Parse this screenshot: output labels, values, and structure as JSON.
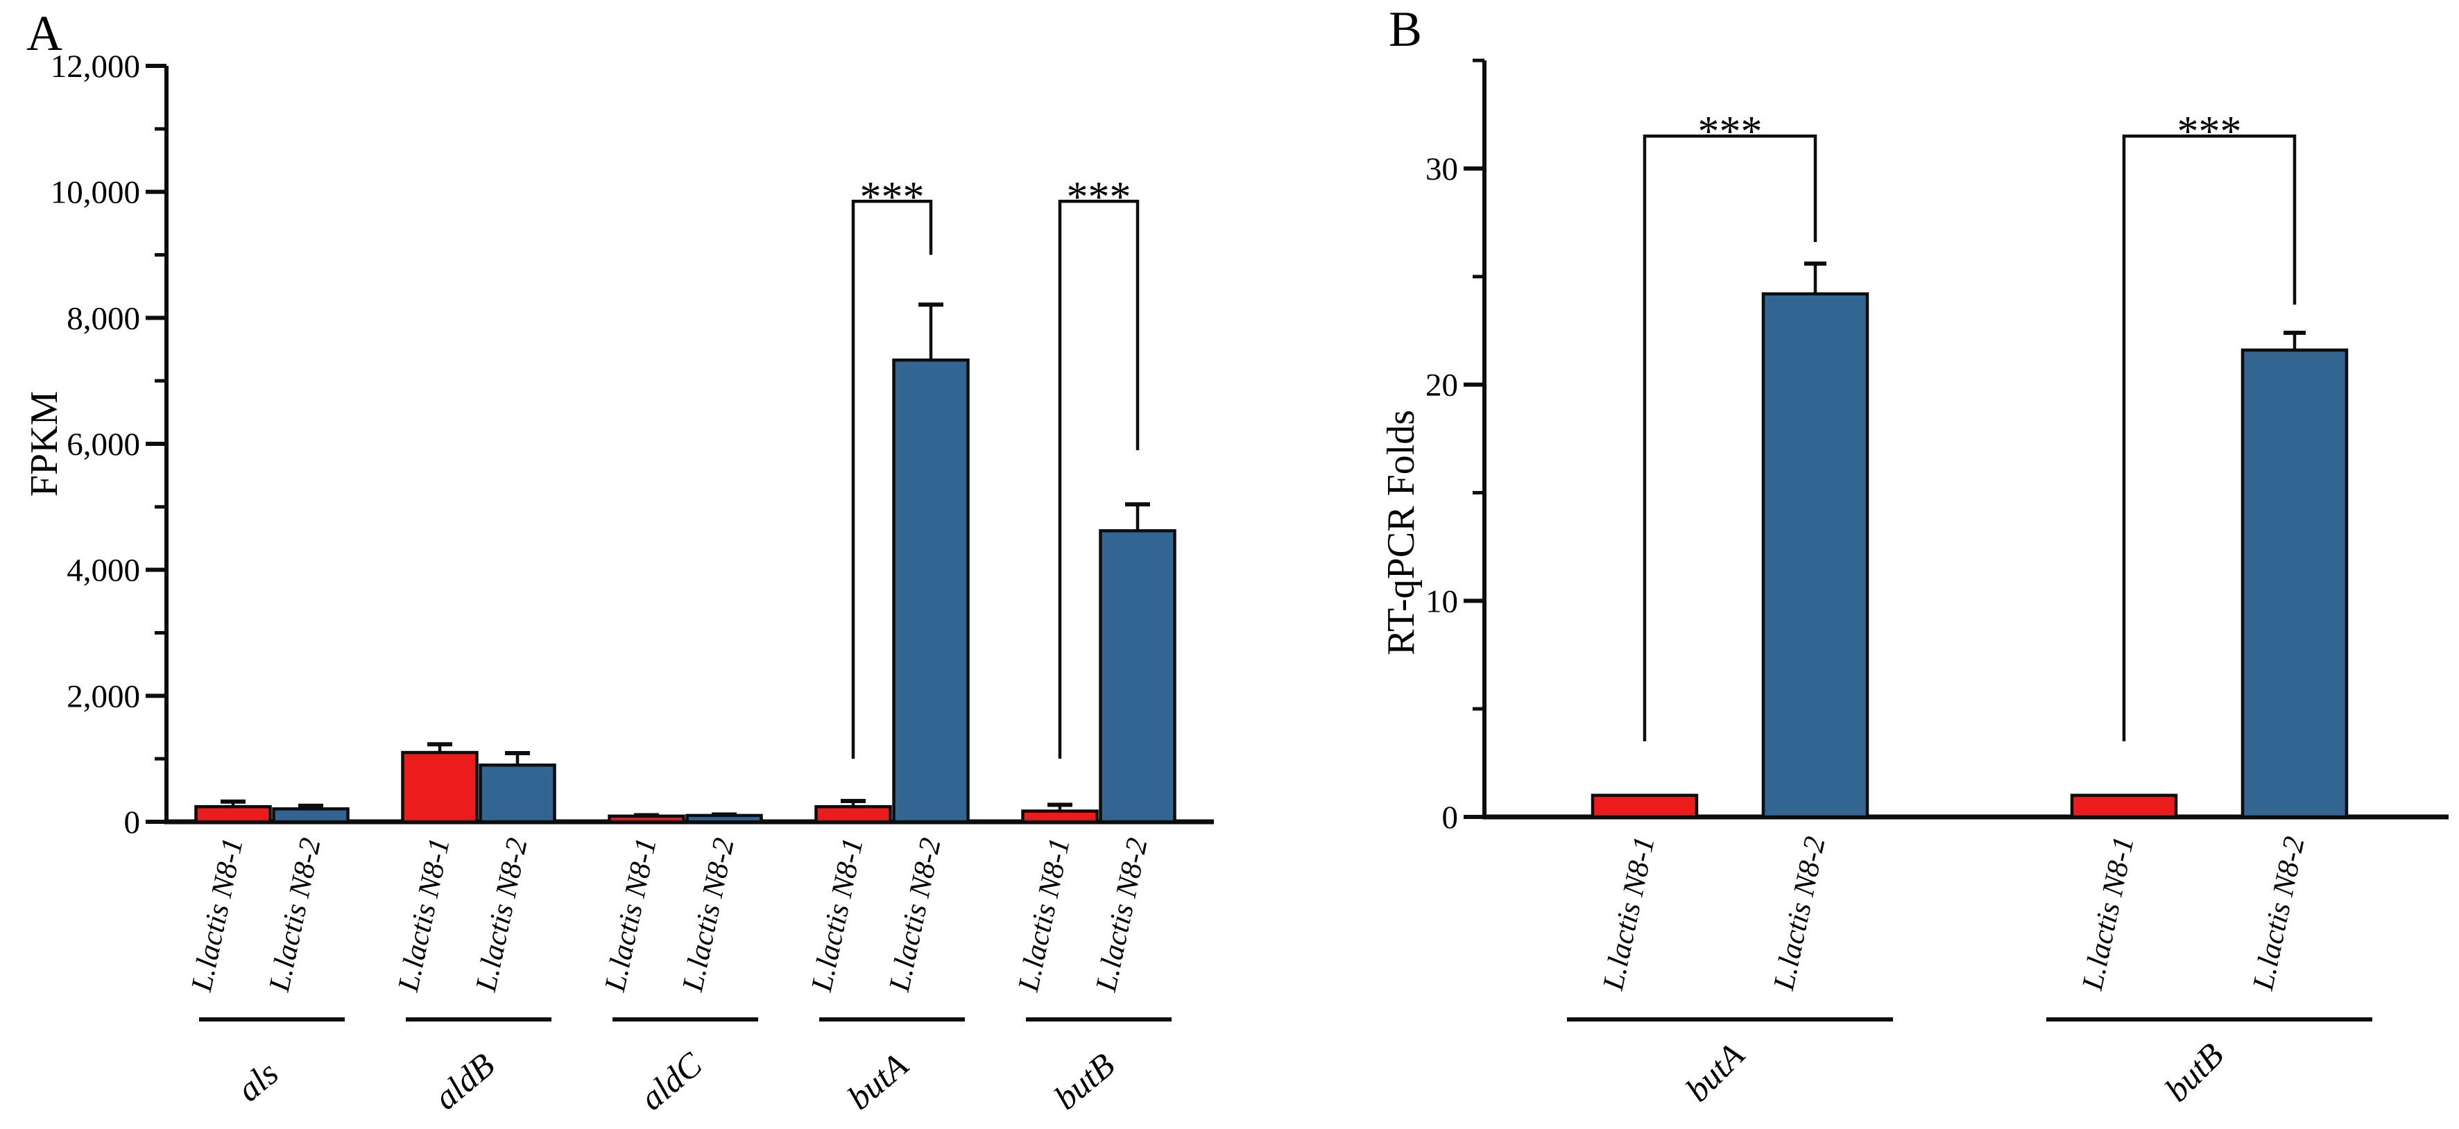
{
  "background": "#ffffff",
  "panel_letters": [
    "A",
    "B"
  ],
  "chart_data": [
    {
      "type": "bar",
      "panel_label": "A",
      "title": "",
      "xlabel": "",
      "ylabel": "FPKM",
      "ylim": [
        0,
        12000
      ],
      "ytick_major": 2000,
      "ytick_minor": 1000,
      "ytick_labels": [
        "0",
        "2,000",
        "4,000",
        "6,000",
        "8,000",
        "10,000",
        "12,000"
      ],
      "grid": "off",
      "legend": "none",
      "categories": [
        "als",
        "aldB",
        "aldC",
        "butA",
        "butB"
      ],
      "series": [
        {
          "name": "L.lactis N8-1",
          "color": "#ED1C1C",
          "values": [
            240,
            1100,
            90,
            240,
            170
          ],
          "errors": [
            80,
            130,
            15,
            90,
            100
          ]
        },
        {
          "name": "L.lactis N8-2",
          "color": "#336592",
          "values": [
            205,
            900,
            100,
            7330,
            4620
          ],
          "errors": [
            50,
            190,
            15,
            880,
            420
          ]
        }
      ],
      "significance": [
        {
          "category": "butA",
          "label": "***",
          "bracket_top": 9850,
          "left_arm_bottom": 1000,
          "right_arm_bottom": 9000
        },
        {
          "category": "butB",
          "label": "***",
          "bracket_top": 9850,
          "left_arm_bottom": 1000,
          "right_arm_bottom": 5900
        }
      ]
    },
    {
      "type": "bar",
      "panel_label": "B",
      "title": "",
      "xlabel": "",
      "ylabel": "RT-qPCR Folds",
      "ylim": [
        0,
        35
      ],
      "ytick_major": 10,
      "ytick_minor": 5,
      "ytick_labels": [
        "0",
        "10",
        "20",
        "30"
      ],
      "grid": "off",
      "legend": "none",
      "categories": [
        "butA",
        "butB"
      ],
      "series": [
        {
          "name": "L.lactis N8-1",
          "color": "#ED1C1C",
          "values": [
            1.0,
            1.0
          ],
          "errors": [
            0,
            0
          ]
        },
        {
          "name": "L.lactis N8-2",
          "color": "#336592",
          "values": [
            24.2,
            21.6
          ],
          "errors": [
            1.4,
            0.8
          ]
        }
      ],
      "significance": [
        {
          "category": "butA",
          "label": "***",
          "bracket_top": 31.5,
          "left_arm_bottom": 3.5,
          "right_arm_bottom": 26.6
        },
        {
          "category": "butB",
          "label": "***",
          "bracket_top": 31.5,
          "left_arm_bottom": 3.5,
          "right_arm_bottom": 23.7
        }
      ]
    }
  ]
}
